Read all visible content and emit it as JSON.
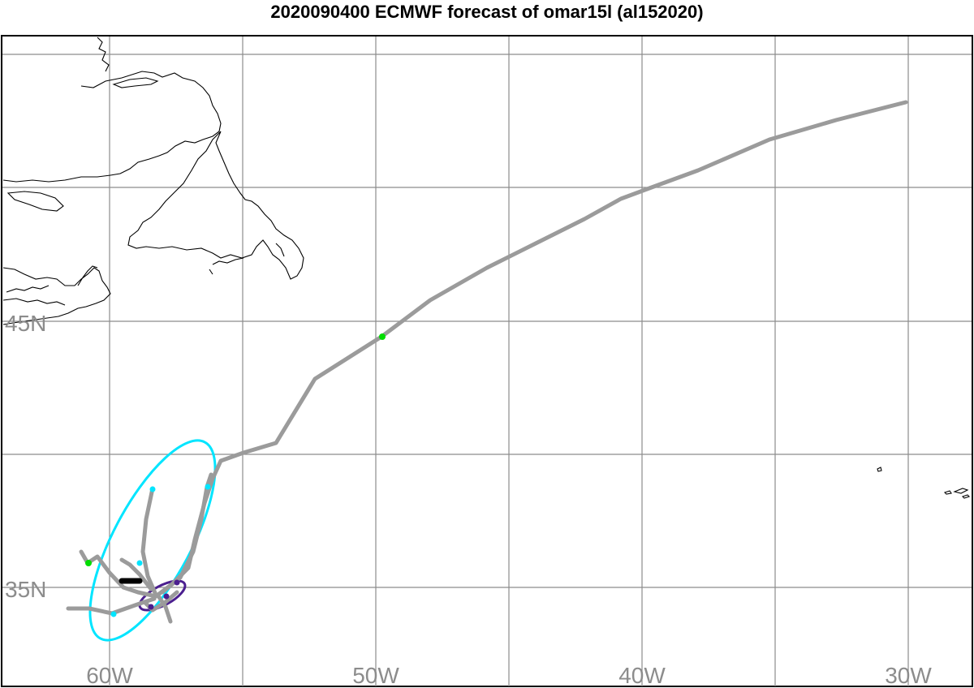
{
  "title": "2020090400 ECMWF forecast of omar15l (al152020)",
  "lon_labels": [
    "60W",
    "50W",
    "40W",
    "30W"
  ],
  "lat_labels": [
    "45N",
    "35N"
  ],
  "colors": {
    "track": "#9b9b9b",
    "grid": "#8c8c8c",
    "coast": "#000000",
    "ellipse_outer": "#00e5ff",
    "ellipse_inner": "#4b1f8f",
    "marker_green": "#00dd00",
    "marker_cyan": "#00e5ff",
    "marker_purple": "#4b1f8f",
    "observed": "#000000"
  }
}
